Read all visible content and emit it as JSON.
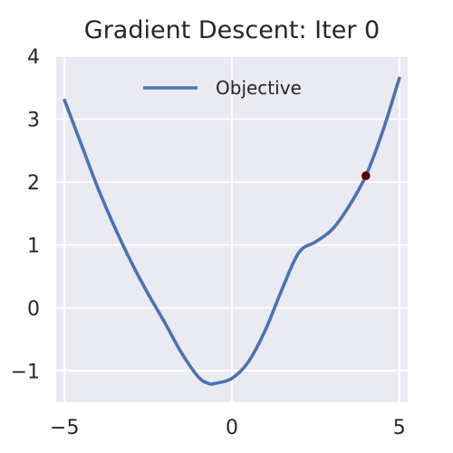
{
  "chart_data": {
    "type": "line",
    "title": "Gradient Descent: Iter 0",
    "xlabel": "",
    "ylabel": "",
    "xlim": [
      -5.25,
      5.25
    ],
    "ylim": [
      -1.5,
      4.0
    ],
    "x_ticks": [
      -5,
      0,
      5
    ],
    "x_tick_labels": [
      "−5",
      "0",
      "5"
    ],
    "y_ticks": [
      -1,
      0,
      1,
      2,
      3,
      4
    ],
    "y_tick_labels": [
      "−1",
      "0",
      "1",
      "2",
      "3",
      "4"
    ],
    "grid": true,
    "legend_position": "top-center",
    "series": [
      {
        "name": "Objective",
        "color": "#4C72B0",
        "x": [
          -5.0,
          -4.5,
          -4.0,
          -3.5,
          -3.0,
          -2.5,
          -2.0,
          -1.5,
          -1.0,
          -0.7,
          -0.5,
          0.0,
          0.5,
          1.0,
          1.5,
          2.0,
          2.5,
          3.0,
          3.5,
          4.0,
          4.5,
          5.0
        ],
        "y": [
          3.3,
          2.6,
          1.9,
          1.28,
          0.72,
          0.22,
          -0.24,
          -0.72,
          -1.1,
          -1.2,
          -1.2,
          -1.12,
          -0.85,
          -0.35,
          0.3,
          0.88,
          1.05,
          1.25,
          1.62,
          2.1,
          2.8,
          3.65
        ]
      }
    ],
    "markers": [
      {
        "x": 4.0,
        "y": 2.1,
        "color": "#5a0000"
      }
    ]
  }
}
